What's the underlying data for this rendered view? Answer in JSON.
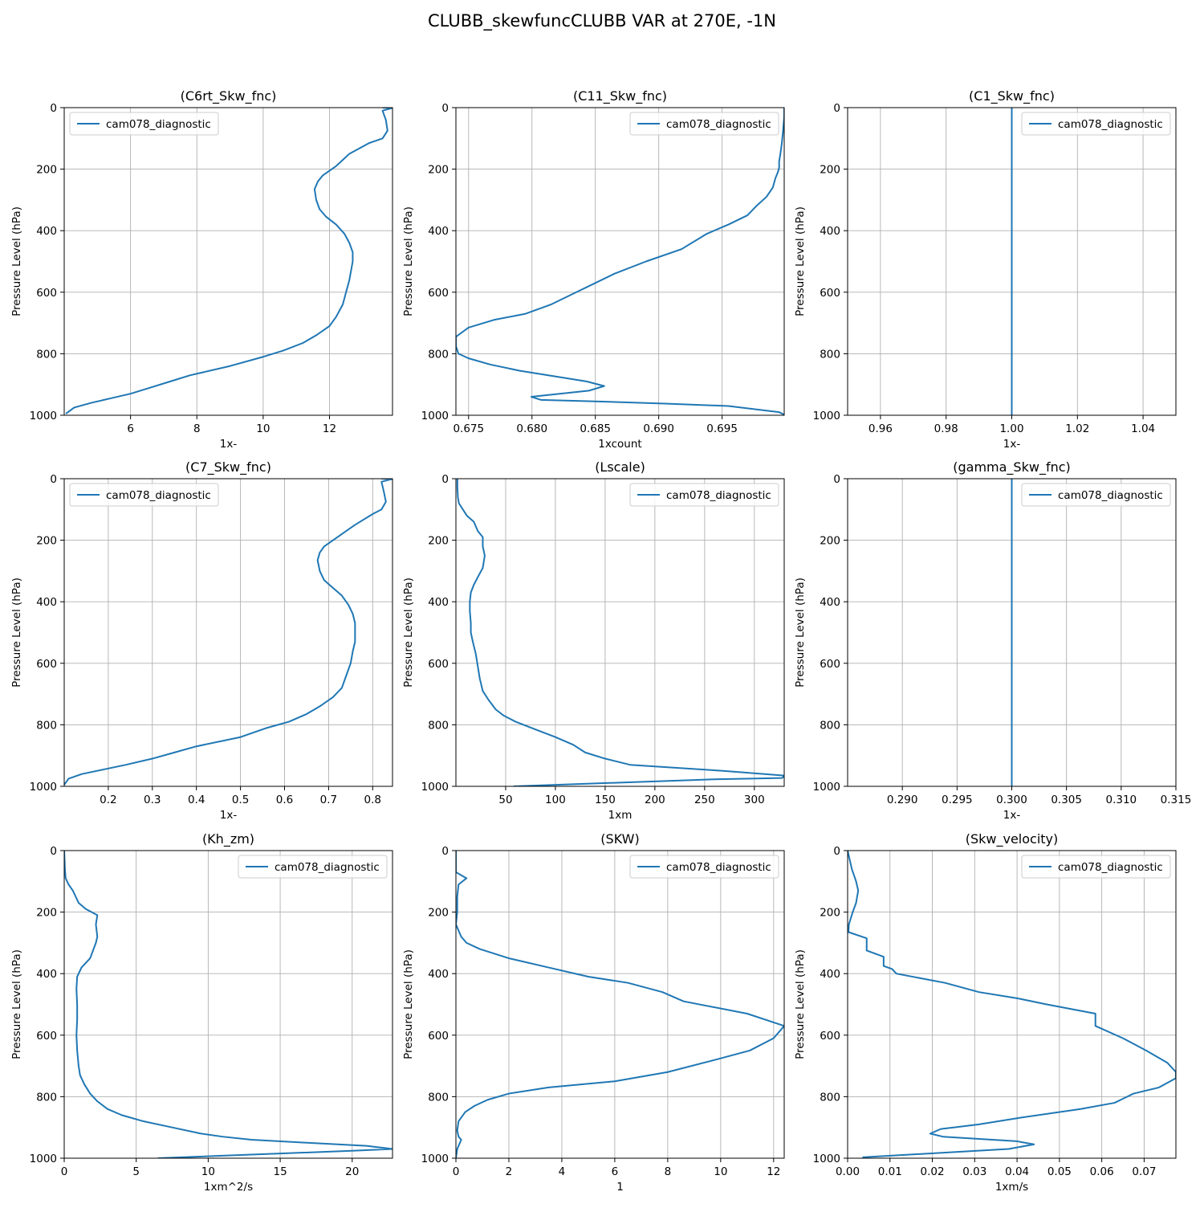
{
  "figure": {
    "suptitle": "CLUBB_skewfuncCLUBB VAR at 270E, -1N",
    "line_color": "#1f77b4",
    "grid_color": "#b0b0b0"
  },
  "chart_data": [
    {
      "type": "line",
      "title": "(C6rt_Skw_fnc)",
      "xlabel": "1x-",
      "ylabel": "Pressure Level (hPa)",
      "xlim": [
        4.0,
        13.9
      ],
      "ylim": [
        1000,
        0
      ],
      "xticks": [
        6,
        8,
        10,
        12
      ],
      "xtick_labels": [
        "6",
        "8",
        "10",
        "12"
      ],
      "yticks": [
        0,
        200,
        400,
        600,
        800,
        1000
      ],
      "ytick_labels": [
        "0",
        "200",
        "400",
        "600",
        "800",
        "1000"
      ],
      "grid": true,
      "legend_loc": "upper left",
      "series": [
        {
          "name": "cam078_diagnostic",
          "x": [
            13.6,
            13.9,
            13.6,
            13.7,
            13.75,
            13.6,
            13.2,
            12.6,
            12.4,
            12.2,
            12.0,
            11.8,
            11.65,
            11.55,
            11.6,
            11.7,
            11.9,
            12.2,
            12.45,
            12.6,
            12.7,
            12.7,
            12.65,
            12.6,
            12.5,
            12.4,
            12.2,
            12.0,
            11.6,
            11.2,
            10.6,
            10.0,
            9.0,
            7.8,
            7.2,
            6.6,
            6.0,
            5.4,
            4.8,
            4.3,
            4.05
          ],
          "y": [
            0,
            1,
            10,
            40,
            75,
            100,
            115,
            150,
            170,
            190,
            205,
            220,
            240,
            265,
            300,
            330,
            355,
            380,
            410,
            440,
            470,
            500,
            530,
            560,
            600,
            640,
            680,
            710,
            740,
            765,
            790,
            810,
            840,
            870,
            890,
            910,
            930,
            945,
            960,
            975,
            995
          ]
        }
      ]
    },
    {
      "type": "line",
      "title": "(C11_Skw_fnc)",
      "xlabel": "1xcount",
      "ylabel": "Pressure Level (hPa)",
      "xlim": [
        0.674,
        0.6999
      ],
      "ylim": [
        1000,
        0
      ],
      "xticks": [
        0.675,
        0.68,
        0.685,
        0.69,
        0.695
      ],
      "xtick_labels": [
        "0.675",
        "0.680",
        "0.685",
        "0.690",
        "0.695"
      ],
      "yticks": [
        0,
        200,
        400,
        600,
        800,
        1000
      ],
      "ytick_labels": [
        "0",
        "200",
        "400",
        "600",
        "800",
        "1000"
      ],
      "grid": true,
      "legend_loc": "upper right",
      "series": [
        {
          "name": "cam078_diagnostic",
          "x": [
            0.6999,
            0.6999,
            0.6998,
            0.6997,
            0.6996,
            0.6995,
            0.6995,
            0.6994,
            0.6992,
            0.699,
            0.6985,
            0.6977,
            0.697,
            0.6955,
            0.6938,
            0.6918,
            0.689,
            0.6865,
            0.685,
            0.683,
            0.6815,
            0.6795,
            0.677,
            0.675,
            0.674,
            0.674,
            0.6742,
            0.675,
            0.6767,
            0.679,
            0.6843,
            0.6857,
            0.6845,
            0.67995,
            0.6807,
            0.685,
            0.6905,
            0.6955,
            0.6995,
            0.6999
          ],
          "y": [
            0,
            30,
            80,
            120,
            150,
            175,
            195,
            210,
            230,
            260,
            290,
            320,
            350,
            380,
            410,
            460,
            500,
            540,
            570,
            610,
            640,
            670,
            690,
            715,
            745,
            775,
            800,
            815,
            835,
            855,
            890,
            905,
            920,
            940,
            950,
            955,
            962,
            970,
            990,
            998
          ]
        }
      ]
    },
    {
      "type": "line",
      "title": "(C1_Skw_fnc)",
      "xlabel": "1x-",
      "ylabel": "Pressure Level (hPa)",
      "xlim": [
        0.95,
        1.05
      ],
      "ylim": [
        1000,
        0
      ],
      "xticks": [
        0.96,
        0.98,
        1.0,
        1.02,
        1.04
      ],
      "xtick_labels": [
        "0.96",
        "0.98",
        "1.00",
        "1.02",
        "1.04"
      ],
      "yticks": [
        0,
        200,
        400,
        600,
        800,
        1000
      ],
      "ytick_labels": [
        "0",
        "200",
        "400",
        "600",
        "800",
        "1000"
      ],
      "grid": true,
      "legend_loc": "upper right",
      "series": [
        {
          "name": "cam078_diagnostic",
          "x": [
            1.0,
            1.0
          ],
          "y": [
            0,
            1000
          ]
        }
      ]
    },
    {
      "type": "line",
      "title": "(C7_Skw_fnc)",
      "xlabel": "1x-",
      "ylabel": "Pressure Level (hPa)",
      "xlim": [
        0.1,
        0.845
      ],
      "ylim": [
        1000,
        0
      ],
      "xticks": [
        0.2,
        0.3,
        0.4,
        0.5,
        0.6,
        0.7,
        0.8
      ],
      "xtick_labels": [
        "0.2",
        "0.3",
        "0.4",
        "0.5",
        "0.6",
        "0.7",
        "0.8"
      ],
      "yticks": [
        0,
        200,
        400,
        600,
        800,
        1000
      ],
      "ytick_labels": [
        "0",
        "200",
        "400",
        "600",
        "800",
        "1000"
      ],
      "grid": true,
      "legend_loc": "upper left",
      "series": [
        {
          "name": "cam078_diagnostic",
          "x": [
            0.82,
            0.845,
            0.82,
            0.825,
            0.83,
            0.82,
            0.8,
            0.76,
            0.74,
            0.72,
            0.705,
            0.69,
            0.68,
            0.675,
            0.68,
            0.69,
            0.71,
            0.73,
            0.745,
            0.755,
            0.76,
            0.76,
            0.76,
            0.755,
            0.75,
            0.74,
            0.73,
            0.71,
            0.68,
            0.65,
            0.61,
            0.56,
            0.5,
            0.4,
            0.35,
            0.3,
            0.24,
            0.19,
            0.14,
            0.11,
            0.1
          ],
          "y": [
            0,
            1,
            10,
            40,
            75,
            100,
            115,
            150,
            170,
            190,
            205,
            220,
            240,
            265,
            300,
            330,
            355,
            380,
            410,
            440,
            470,
            500,
            530,
            560,
            600,
            640,
            680,
            710,
            740,
            765,
            790,
            810,
            840,
            870,
            890,
            910,
            930,
            945,
            960,
            975,
            995
          ]
        }
      ]
    },
    {
      "type": "line",
      "title": "(Lscale)",
      "xlabel": "1xm",
      "ylabel": "Pressure Level (hPa)",
      "xlim": [
        0,
        330
      ],
      "ylim": [
        1000,
        0
      ],
      "xticks": [
        50,
        100,
        150,
        200,
        250,
        300
      ],
      "xtick_labels": [
        "50",
        "100",
        "150",
        "200",
        "250",
        "300"
      ],
      "yticks": [
        0,
        200,
        400,
        600,
        800,
        1000
      ],
      "ytick_labels": [
        "0",
        "200",
        "400",
        "600",
        "800",
        "1000"
      ],
      "grid": true,
      "legend_loc": "upper right",
      "series": [
        {
          "name": "cam078_diagnostic",
          "x": [
            1.5,
            1.5,
            2,
            3,
            7,
            11,
            18,
            22,
            27,
            27,
            29,
            27,
            22,
            18,
            15,
            14,
            14,
            15,
            15,
            17,
            20,
            22,
            24,
            27,
            33,
            40,
            48,
            60,
            80,
            100,
            118,
            130,
            150,
            175,
            270,
            330,
            328,
            260,
            58
          ],
          "y": [
            0,
            30,
            60,
            80,
            100,
            120,
            140,
            170,
            190,
            220,
            250,
            290,
            320,
            345,
            370,
            400,
            430,
            470,
            500,
            530,
            570,
            610,
            650,
            690,
            720,
            750,
            770,
            790,
            815,
            840,
            865,
            890,
            910,
            930,
            950,
            965,
            973,
            977,
            1000
          ]
        }
      ]
    },
    {
      "type": "line",
      "title": "(gamma_Skw_fnc)",
      "xlabel": "1x-",
      "ylabel": "Pressure Level (hPa)",
      "xlim": [
        0.285,
        0.315
      ],
      "ylim": [
        1000,
        0
      ],
      "xticks": [
        0.29,
        0.295,
        0.3,
        0.305,
        0.31,
        0.315
      ],
      "xtick_labels": [
        "0.290",
        "0.295",
        "0.300",
        "0.305",
        "0.310",
        "0.315"
      ],
      "yticks": [
        0,
        200,
        400,
        600,
        800,
        1000
      ],
      "ytick_labels": [
        "0",
        "200",
        "400",
        "600",
        "800",
        "1000"
      ],
      "grid": true,
      "legend_loc": "upper right",
      "series": [
        {
          "name": "cam078_diagnostic",
          "x": [
            0.3,
            0.3
          ],
          "y": [
            0,
            1000
          ]
        }
      ]
    },
    {
      "type": "line",
      "title": "(Kh_zm)",
      "xlabel": "1xm^2/s",
      "ylabel": "Pressure Level (hPa)",
      "xlim": [
        0,
        22.8
      ],
      "ylim": [
        1000,
        0
      ],
      "xticks": [
        0,
        5,
        10,
        15,
        20
      ],
      "xtick_labels": [
        "0",
        "5",
        "10",
        "15",
        "20"
      ],
      "yticks": [
        0,
        200,
        400,
        600,
        800,
        1000
      ],
      "ytick_labels": [
        "0",
        "200",
        "400",
        "600",
        "800",
        "1000"
      ],
      "grid": true,
      "legend_loc": "upper right",
      "series": [
        {
          "name": "cam078_diagnostic",
          "x": [
            0,
            0.05,
            0.1,
            0.3,
            0.6,
            0.8,
            1.0,
            1.5,
            2.3,
            2.2,
            2.3,
            2.2,
            1.8,
            1.2,
            0.9,
            0.85,
            0.9,
            0.9,
            0.85,
            0.9,
            1.0,
            1.1,
            1.4,
            1.8,
            2.3,
            3.0,
            4.0,
            5.5,
            7.5,
            9.5,
            11.0,
            13.0,
            17.0,
            21.0,
            22.8,
            20.5,
            6.5
          ],
          "y": [
            0,
            60,
            90,
            110,
            130,
            150,
            170,
            190,
            210,
            240,
            280,
            300,
            350,
            380,
            410,
            450,
            500,
            550,
            600,
            650,
            700,
            730,
            760,
            790,
            815,
            840,
            860,
            880,
            900,
            920,
            930,
            940,
            950,
            960,
            970,
            975,
            1000
          ]
        }
      ]
    },
    {
      "type": "line",
      "title": "(SKW)",
      "xlabel": "1",
      "ylabel": "Pressure Level (hPa)",
      "xlim": [
        0,
        12.4
      ],
      "ylim": [
        1000,
        0
      ],
      "xticks": [
        0,
        2,
        4,
        6,
        8,
        10,
        12
      ],
      "xtick_labels": [
        "0",
        "2",
        "4",
        "6",
        "8",
        "10",
        "12"
      ],
      "yticks": [
        0,
        200,
        400,
        600,
        800,
        1000
      ],
      "ytick_labels": [
        "0",
        "200",
        "400",
        "600",
        "800",
        "1000"
      ],
      "grid": true,
      "legend_loc": "upper right",
      "series": [
        {
          "name": "cam078_diagnostic",
          "x": [
            0,
            0,
            0.4,
            0.1,
            0.05,
            0.05,
            0.0,
            0.2,
            0.4,
            0.9,
            2.0,
            3.5,
            5.0,
            6.5,
            7.8,
            8.6,
            11.0,
            12.4,
            12.0,
            11.1,
            9.8,
            8.0,
            6.0,
            3.5,
            2.0,
            1.2,
            0.7,
            0.35,
            0.1,
            0.05,
            0.1,
            0.2,
            0.15,
            0.05,
            0
          ],
          "y": [
            0,
            70,
            90,
            110,
            150,
            200,
            240,
            280,
            300,
            320,
            350,
            380,
            410,
            430,
            460,
            490,
            530,
            570,
            610,
            650,
            680,
            720,
            750,
            770,
            790,
            810,
            830,
            850,
            880,
            910,
            930,
            940,
            950,
            970,
            1000
          ]
        }
      ]
    },
    {
      "type": "line",
      "title": "(Skw_velocity)",
      "xlabel": "1xm/s",
      "ylabel": "Pressure Level (hPa)",
      "xlim": [
        0,
        0.0775
      ],
      "ylim": [
        1000,
        0
      ],
      "xticks": [
        0,
        0.01,
        0.02,
        0.03,
        0.04,
        0.05,
        0.06,
        0.07
      ],
      "xtick_labels": [
        "0.00",
        "0.01",
        "0.02",
        "0.03",
        "0.04",
        "0.05",
        "0.06",
        "0.07"
      ],
      "yticks": [
        0,
        200,
        400,
        600,
        800,
        1000
      ],
      "ytick_labels": [
        "0",
        "200",
        "400",
        "600",
        "800",
        "1000"
      ],
      "grid": true,
      "legend_loc": "upper right",
      "series": [
        {
          "name": "cam078_diagnostic",
          "x": [
            0.0,
            0.0005,
            0.001,
            0.0015,
            0.002,
            0.0025,
            0.002,
            0.0012,
            0.0003,
            0.0002,
            0.0045,
            0.0045,
            0.0085,
            0.0085,
            0.0105,
            0.0115,
            0.023,
            0.031,
            0.04,
            0.047,
            0.0585,
            0.0585,
            0.0585,
            0.065,
            0.0705,
            0.0755,
            0.0775,
            0.0775,
            0.0735,
            0.0675,
            0.063,
            0.055,
            0.04,
            0.031,
            0.025,
            0.022,
            0.0195,
            0.0225,
            0.04,
            0.044,
            0.038,
            0.0035
          ],
          "y": [
            0,
            30,
            60,
            80,
            100,
            130,
            170,
            200,
            240,
            265,
            285,
            325,
            345,
            375,
            385,
            400,
            430,
            460,
            480,
            500,
            530,
            560,
            570,
            610,
            650,
            690,
            720,
            740,
            770,
            790,
            820,
            840,
            870,
            890,
            900,
            905,
            920,
            930,
            945,
            955,
            970,
            997
          ]
        }
      ]
    }
  ]
}
